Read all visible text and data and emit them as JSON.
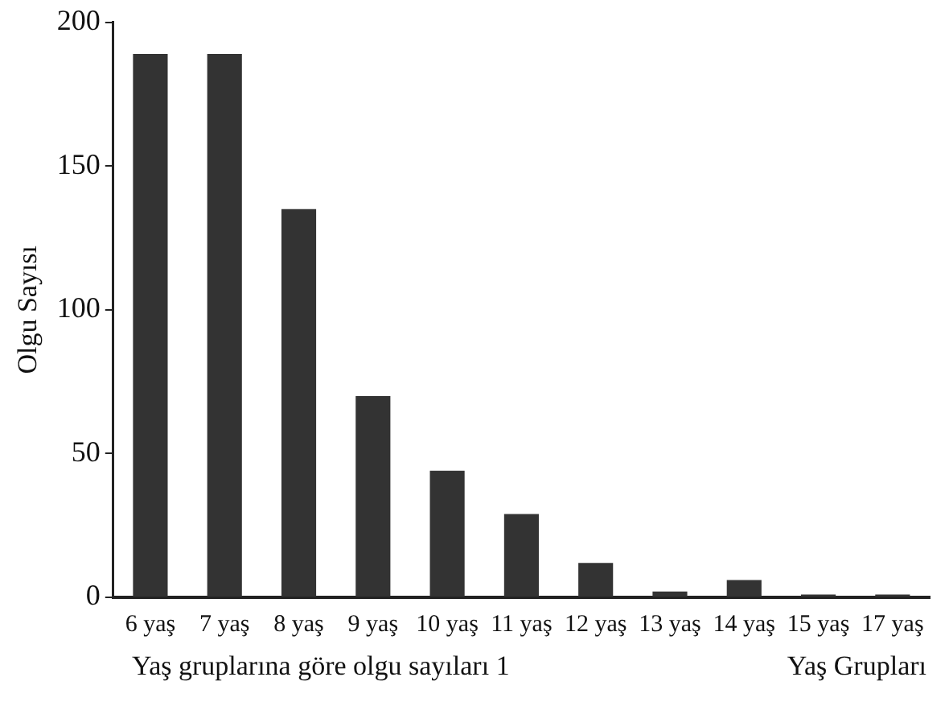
{
  "chart_data": {
    "type": "bar",
    "ylabel": "Olgu Sayısı",
    "xlabel": "Yaş Grupları",
    "annotations": [
      "Yaş gruplarına göre olgu sayıları 1"
    ],
    "categories": [
      "6 yaş",
      "7 yaş",
      "8 yaş",
      "9 yaş",
      "10 yaş",
      "11 yaş",
      "12 yaş",
      "13 yaş",
      "14 yaş",
      "15 yaş",
      "17 yaş"
    ],
    "values": [
      189,
      189,
      135,
      70,
      44,
      29,
      12,
      2,
      6,
      1,
      1
    ],
    "color": "#333333",
    "ylim": [
      0,
      200
    ],
    "yticks": [
      0,
      50,
      100,
      150,
      200
    ],
    "grid": false,
    "legend": false
  }
}
